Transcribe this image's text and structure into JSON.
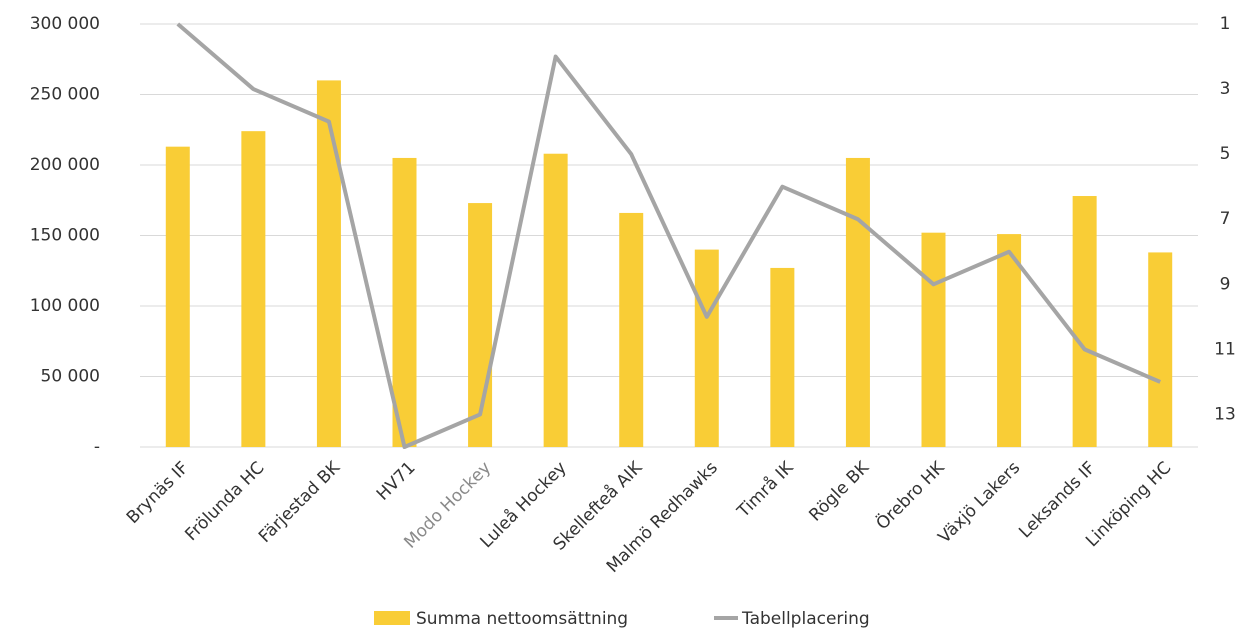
{
  "chart_data": {
    "type": "bar_line",
    "categories": [
      "Brynäs IF",
      "Frölunda HC",
      "Färjestad BK",
      "HV71",
      "Modo Hockey",
      "Luleå Hockey",
      "Skellefteå AIK",
      "Malmö Redhawks",
      "Timrå IK",
      "Rögle BK",
      "Örebro HK",
      "Växjö Lakers",
      "Leksands IF",
      "Linköping HC"
    ],
    "series": [
      {
        "name": "Summa nettoomsättning",
        "type": "bar",
        "color": "#f9cd36",
        "values": [
          213000,
          224000,
          260000,
          205000,
          173000,
          208000,
          166000,
          140000,
          127000,
          205000,
          152000,
          151000,
          178000,
          138000
        ]
      },
      {
        "name": "Tabellplacering",
        "type": "line",
        "axis": "y2",
        "color": "#a5a5a5",
        "values": [
          1,
          3,
          4,
          14,
          13,
          2,
          5,
          10,
          6,
          7,
          9,
          8,
          11,
          12
        ]
      }
    ],
    "ylim": [
      0,
      300000
    ],
    "yticks": [
      {
        "value": 0,
        "label": "-"
      },
      {
        "value": 50000,
        "label": "50 000"
      },
      {
        "value": 100000,
        "label": "100 000"
      },
      {
        "value": 150000,
        "label": "150 000"
      },
      {
        "value": 200000,
        "label": "200 000"
      },
      {
        "value": 250000,
        "label": "250 000"
      },
      {
        "value": 300000,
        "label": "300 000"
      }
    ],
    "y2lim": [
      14,
      1
    ],
    "y2ticks": [
      1,
      3,
      5,
      7,
      9,
      11,
      13
    ],
    "grid": true,
    "legend": "bottom"
  }
}
